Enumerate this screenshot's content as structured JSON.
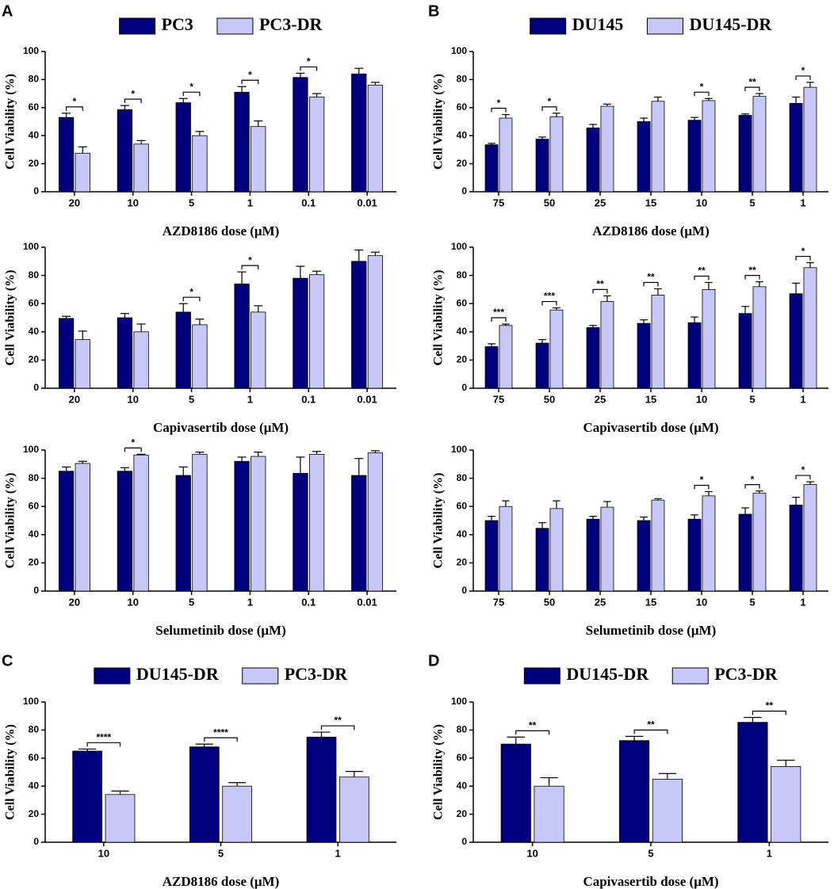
{
  "chart_data": [
    {
      "type": "bar",
      "panel": "A",
      "xlabel": "AZD8186 dose (μM)",
      "ylabel": "Cell Viability (%)",
      "categories": [
        "20",
        "10",
        "5",
        "1",
        "0.1",
        "0.01"
      ],
      "series": [
        {
          "name": "PC3",
          "color": "#00007f",
          "values": [
            53,
            58.5,
            63.5,
            71,
            81.5,
            84
          ],
          "errors": [
            3,
            3,
            3,
            4,
            3,
            4
          ]
        },
        {
          "name": "PC3-DR",
          "color": "#c8c8f8",
          "values": [
            27.5,
            34,
            40,
            46.5,
            67.5,
            76
          ],
          "errors": [
            4.5,
            2.5,
            3,
            4,
            2.5,
            2
          ]
        }
      ],
      "significance": [
        {
          "category": 0,
          "label": "*"
        },
        {
          "category": 1,
          "label": "*"
        },
        {
          "category": 2,
          "label": "*"
        },
        {
          "category": 3,
          "label": "*"
        },
        {
          "category": 4,
          "label": "*"
        }
      ],
      "ylim": [
        0,
        100
      ],
      "yticks": [
        0,
        20,
        40,
        60,
        80,
        100
      ]
    },
    {
      "type": "bar",
      "xlabel": "Capivasertib dose (μM)",
      "ylabel": "Cell Viability (%)",
      "categories": [
        "20",
        "10",
        "5",
        "1",
        "0.1",
        "0.01"
      ],
      "series": [
        {
          "color": "#00007f",
          "values": [
            49.5,
            50,
            54,
            74,
            78,
            90
          ],
          "errors": [
            1.5,
            3,
            6,
            8.5,
            8.5,
            8
          ]
        },
        {
          "color": "#c8c8f8",
          "values": [
            34.5,
            40,
            45,
            54,
            80.5,
            94
          ],
          "errors": [
            6,
            5.5,
            4,
            4.5,
            2.5,
            2.5
          ]
        }
      ],
      "significance": [
        {
          "category": 2,
          "label": "*"
        },
        {
          "category": 3,
          "label": "*"
        }
      ],
      "ylim": [
        0,
        100
      ],
      "yticks": [
        0,
        20,
        40,
        60,
        80,
        100
      ]
    },
    {
      "type": "bar",
      "xlabel": "Selumetinib dose (μM)",
      "ylabel": "Cell Viability (%)",
      "categories": [
        "20",
        "10",
        "5",
        "1",
        "0.1",
        "0.01"
      ],
      "series": [
        {
          "color": "#00007f",
          "values": [
            85,
            85,
            82,
            92,
            83.5,
            82
          ],
          "errors": [
            3,
            2.5,
            6,
            3,
            11.5,
            12
          ]
        },
        {
          "color": "#c8c8f8",
          "values": [
            90.5,
            96.5,
            97,
            95.5,
            97,
            98
          ],
          "errors": [
            1.5,
            0.5,
            1.5,
            3,
            2,
            1.5
          ]
        }
      ],
      "significance": [
        {
          "category": 1,
          "label": "*"
        }
      ],
      "ylim": [
        0,
        100
      ],
      "yticks": [
        0,
        20,
        40,
        60,
        80,
        100
      ]
    },
    {
      "type": "bar",
      "panel": "B",
      "xlabel": "AZD8186 dose (μM)",
      "ylabel": "Cell Viability (%)",
      "categories": [
        "75",
        "50",
        "25",
        "15",
        "10",
        "5",
        "1"
      ],
      "series": [
        {
          "name": "DU145",
          "color": "#00007f",
          "values": [
            33.5,
            37.5,
            45.5,
            50,
            51,
            54.5,
            63
          ],
          "errors": [
            1,
            1.5,
            2.5,
            2.5,
            2,
            1,
            4.5
          ]
        },
        {
          "name": "DU145-DR",
          "color": "#c8c8f8",
          "values": [
            52.5,
            53.5,
            61,
            64.5,
            65,
            68,
            74.5
          ],
          "errors": [
            2.5,
            2.5,
            1.5,
            3,
            1.5,
            2,
            3.5
          ]
        }
      ],
      "significance": [
        {
          "category": 0,
          "label": "*"
        },
        {
          "category": 1,
          "label": "*"
        },
        {
          "category": 4,
          "label": "*"
        },
        {
          "category": 5,
          "label": "**"
        },
        {
          "category": 6,
          "label": "*"
        }
      ],
      "ylim": [
        0,
        100
      ],
      "yticks": [
        0,
        20,
        40,
        60,
        80,
        100
      ]
    },
    {
      "type": "bar",
      "xlabel": "Capivasertib dose (μM)",
      "ylabel": "Cell Viability (%)",
      "categories": [
        "75",
        "50",
        "25",
        "15",
        "10",
        "5",
        "1"
      ],
      "series": [
        {
          "color": "#00007f",
          "values": [
            29.5,
            32,
            43,
            46,
            46.5,
            53,
            67
          ],
          "errors": [
            2,
            2.5,
            1.5,
            2.5,
            4,
            5,
            7.5
          ]
        },
        {
          "color": "#c8c8f8",
          "values": [
            44.5,
            55.5,
            61.5,
            66,
            70,
            72,
            85.5
          ],
          "errors": [
            1,
            1.5,
            4,
            4.5,
            5,
            3.5,
            3.5
          ]
        }
      ],
      "significance": [
        {
          "category": 0,
          "label": "***"
        },
        {
          "category": 1,
          "label": "***"
        },
        {
          "category": 2,
          "label": "**"
        },
        {
          "category": 3,
          "label": "**"
        },
        {
          "category": 4,
          "label": "**"
        },
        {
          "category": 5,
          "label": "**"
        },
        {
          "category": 6,
          "label": "*"
        }
      ],
      "ylim": [
        0,
        100
      ],
      "yticks": [
        0,
        20,
        40,
        60,
        80,
        100
      ]
    },
    {
      "type": "bar",
      "xlabel": "Selumetinib dose (μM)",
      "ylabel": "Cell Viability (%)",
      "categories": [
        "75",
        "50",
        "25",
        "15",
        "10",
        "5",
        "1"
      ],
      "series": [
        {
          "color": "#00007f",
          "values": [
            50,
            44.5,
            51,
            50,
            51,
            54.5,
            61
          ],
          "errors": [
            3,
            4,
            2,
            2.5,
            3,
            4.5,
            5.5
          ]
        },
        {
          "color": "#c8c8f8",
          "values": [
            60,
            58.5,
            59.5,
            64.5,
            67.5,
            69.5,
            75.5
          ],
          "errors": [
            4,
            5.5,
            4,
            1,
            3,
            1.5,
            2
          ]
        }
      ],
      "significance": [
        {
          "category": 4,
          "label": "*"
        },
        {
          "category": 5,
          "label": "*"
        },
        {
          "category": 6,
          "label": "*"
        }
      ],
      "ylim": [
        0,
        100
      ],
      "yticks": [
        0,
        20,
        40,
        60,
        80,
        100
      ]
    },
    {
      "type": "bar",
      "panel": "C",
      "xlabel": "AZD8186 dose (μM)",
      "ylabel": "Cell Viability (%)",
      "categories": [
        "10",
        "5",
        "1"
      ],
      "series": [
        {
          "name": "DU145-DR",
          "color": "#00007f",
          "values": [
            65,
            68,
            75
          ],
          "errors": [
            1.5,
            2,
            3.5
          ]
        },
        {
          "name": "PC3-DR",
          "color": "#c8c8f8",
          "values": [
            34,
            40,
            46.5
          ],
          "errors": [
            2.5,
            2.5,
            4
          ]
        }
      ],
      "significance": [
        {
          "category": 0,
          "label": "****"
        },
        {
          "category": 1,
          "label": "****"
        },
        {
          "category": 2,
          "label": "**"
        }
      ],
      "ylim": [
        0,
        100
      ],
      "yticks": [
        0,
        20,
        40,
        60,
        80,
        100
      ]
    },
    {
      "type": "bar",
      "panel": "D",
      "xlabel": "Capivasertib dose (μM)",
      "ylabel": "Cell Viability (%)",
      "categories": [
        "10",
        "5",
        "1"
      ],
      "series": [
        {
          "name": "DU145-DR",
          "color": "#00007f",
          "values": [
            70,
            72.5,
            85.5
          ],
          "errors": [
            5,
            3,
            3.5
          ]
        },
        {
          "name": "PC3-DR",
          "color": "#c8c8f8",
          "values": [
            40,
            45,
            54
          ],
          "errors": [
            6,
            4,
            4.5
          ]
        }
      ],
      "significance": [
        {
          "category": 0,
          "label": "**"
        },
        {
          "category": 1,
          "label": "**"
        },
        {
          "category": 2,
          "label": "**"
        }
      ],
      "ylim": [
        0,
        100
      ],
      "yticks": [
        0,
        20,
        40,
        60,
        80,
        100
      ]
    }
  ]
}
